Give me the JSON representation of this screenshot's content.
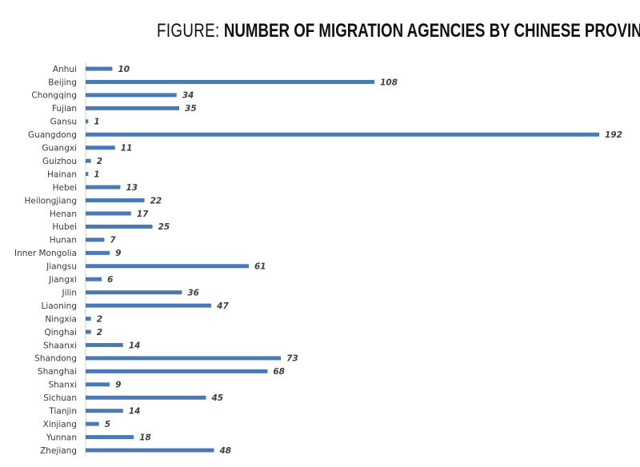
{
  "title": {
    "prefix": "FIGURE:",
    "main": "NUMBER OF MIGRATION AGENCIES BY CHINESE PROVINCE"
  },
  "chart_data": {
    "type": "bar",
    "orientation": "horizontal",
    "title": "FIGURE: NUMBER OF MIGRATION AGENCIES BY CHINESE PROVINCE",
    "categories": [
      "Anhui",
      "Beijing",
      "Chongqing",
      "Fujian",
      "Gansu",
      "Guangdong",
      "Guangxi",
      "Guizhou",
      "Hainan",
      "Hebei",
      "Heilongjiang",
      "Henan",
      "Hubei",
      "Hunan",
      "Inner Mongolia",
      "Jiangsu",
      "Jiangxi",
      "Jilin",
      "Liaoning",
      "Ningxia",
      "Qinghai",
      "Shaanxi",
      "Shandong",
      "Shanghai",
      "Shanxi",
      "Sichuan",
      "Tianjin",
      "Xinjiang",
      "Yunnan",
      "Zhejiang"
    ],
    "values": [
      10,
      108,
      34,
      35,
      1,
      192,
      11,
      2,
      1,
      13,
      22,
      17,
      25,
      7,
      9,
      61,
      6,
      36,
      47,
      2,
      2,
      14,
      73,
      68,
      9,
      45,
      14,
      5,
      18,
      48
    ],
    "data_labels": true,
    "bar_color": "#4a7ab5",
    "grid": false,
    "legend": "none"
  }
}
